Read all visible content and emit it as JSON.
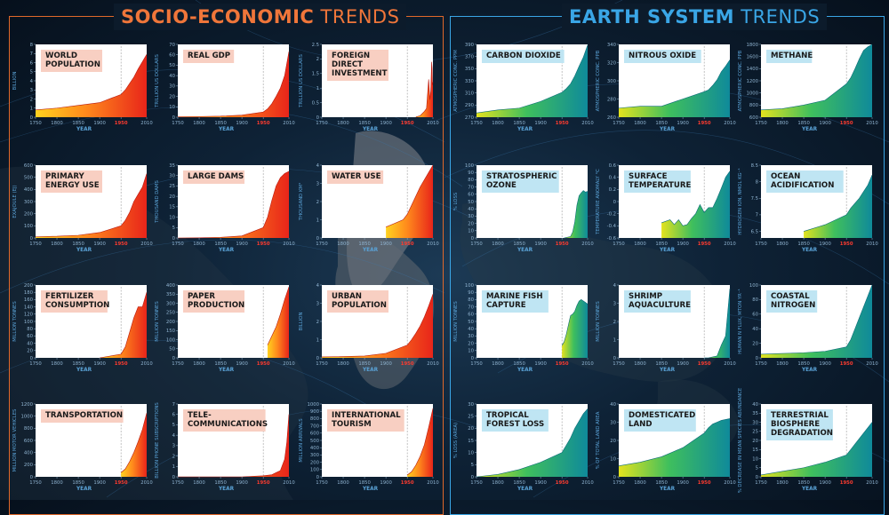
{
  "header": {
    "left": {
      "bold": "SOCIO-ECONOMIC",
      "light": "TRENDS",
      "color": "#f0763a"
    },
    "right": {
      "bold": "EARTH SYSTEM",
      "light": "TRENDS",
      "color": "#3aa6e6"
    }
  },
  "colors": {
    "socio_border": "#e0682a",
    "earth_border": "#3aa6e6",
    "marker_year": "#ff3b2f"
  },
  "xlabel": "YEAR",
  "x_ticks": [
    1750,
    1800,
    1850,
    1900,
    1950,
    2010
  ],
  "chart_data": [
    {
      "type": "area",
      "group": "socio",
      "title": [
        "WORLD",
        "POPULATION"
      ],
      "ylabel": "BILLION",
      "yticks": [
        0,
        1,
        2,
        3,
        4,
        5,
        6,
        7,
        8
      ],
      "ylim": [
        0,
        8
      ],
      "x": [
        1750,
        1800,
        1850,
        1900,
        1950,
        1960,
        1970,
        1980,
        1990,
        2000,
        2010
      ],
      "values": [
        0.8,
        1.0,
        1.3,
        1.6,
        2.5,
        3.0,
        3.7,
        4.4,
        5.3,
        6.1,
        6.9
      ]
    },
    {
      "type": "area",
      "group": "socio",
      "title": [
        "REAL GDP"
      ],
      "ylabel": "TRILLION US DOLLARS",
      "yticks": [
        0,
        10,
        20,
        30,
        40,
        50,
        60,
        70
      ],
      "ylim": [
        0,
        70
      ],
      "x": [
        1750,
        1800,
        1850,
        1900,
        1950,
        1960,
        1970,
        1980,
        1990,
        2000,
        2010
      ],
      "values": [
        0.4,
        0.6,
        1.0,
        2.0,
        5.0,
        8.0,
        13,
        20,
        28,
        40,
        63
      ]
    },
    {
      "type": "area",
      "group": "socio",
      "title": [
        "FOREIGN",
        "DIRECT",
        "INVESTMENT"
      ],
      "ylabel": "TRILLION US DOLLARS",
      "yticks": [
        0,
        0.5,
        1.0,
        1.5,
        2.0,
        2.5
      ],
      "ylim": [
        0,
        2.5
      ],
      "x": [
        1970,
        1980,
        1990,
        1995,
        2000,
        2003,
        2005,
        2007,
        2008,
        2009,
        2010
      ],
      "values": [
        0.01,
        0.05,
        0.2,
        0.3,
        1.3,
        0.6,
        0.9,
        1.9,
        1.7,
        1.1,
        1.2
      ]
    },
    {
      "type": "area",
      "group": "socio",
      "title": [
        "PRIMARY",
        "ENERGY USE"
      ],
      "ylabel": "EXAJOULE (EJ)",
      "yticks": [
        0,
        100,
        200,
        300,
        400,
        500,
        600
      ],
      "ylim": [
        0,
        600
      ],
      "x": [
        1750,
        1800,
        1850,
        1900,
        1950,
        1960,
        1970,
        1980,
        1990,
        2000,
        2010
      ],
      "values": [
        10,
        14,
        22,
        45,
        100,
        145,
        210,
        300,
        360,
        420,
        530
      ]
    },
    {
      "type": "area",
      "group": "socio",
      "title": [
        "LARGE DAMS"
      ],
      "ylabel": "THOUSAND DAMS",
      "yticks": [
        0,
        5,
        10,
        15,
        20,
        25,
        30,
        35
      ],
      "ylim": [
        0,
        35
      ],
      "x": [
        1750,
        1800,
        1850,
        1900,
        1950,
        1960,
        1970,
        1980,
        1990,
        2000,
        2010
      ],
      "values": [
        0,
        0.1,
        0.3,
        1.0,
        5.0,
        10,
        18,
        25,
        29,
        31,
        32
      ]
    },
    {
      "type": "area",
      "group": "socio",
      "title": [
        "WATER USE"
      ],
      "ylabel": "THOUSAND KM³",
      "yticks": [
        0,
        1,
        2,
        3,
        4
      ],
      "ylim": [
        0,
        4
      ],
      "x": [
        1900,
        1920,
        1940,
        1950,
        1960,
        1970,
        1980,
        1990,
        2000,
        2010
      ],
      "values": [
        0.6,
        0.8,
        1.0,
        1.3,
        1.8,
        2.3,
        2.8,
        3.2,
        3.6,
        4.0
      ]
    },
    {
      "type": "area",
      "group": "socio",
      "title": [
        "FERTILIZER",
        "CONSUMPTION"
      ],
      "ylabel": "MILLION TONNES",
      "yticks": [
        0,
        20,
        40,
        60,
        80,
        100,
        120,
        140,
        160,
        180,
        200
      ],
      "ylim": [
        0,
        200
      ],
      "x": [
        1900,
        1950,
        1960,
        1970,
        1980,
        1990,
        2000,
        2010
      ],
      "values": [
        0,
        10,
        30,
        70,
        110,
        140,
        140,
        180
      ]
    },
    {
      "type": "area",
      "group": "socio",
      "title": [
        "PAPER",
        "PRODUCTION"
      ],
      "ylabel": "MILLION TONNES",
      "yticks": [
        0,
        50,
        100,
        150,
        200,
        250,
        300,
        350,
        400
      ],
      "ylim": [
        0,
        400
      ],
      "x": [
        1960,
        1970,
        1980,
        1990,
        2000,
        2010
      ],
      "values": [
        70,
        120,
        170,
        240,
        320,
        390
      ]
    },
    {
      "type": "area",
      "group": "socio",
      "title": [
        "URBAN",
        "POPULATION"
      ],
      "ylabel": "BILLION",
      "yticks": [
        0,
        1,
        2,
        3,
        4
      ],
      "ylim": [
        0,
        4
      ],
      "x": [
        1750,
        1800,
        1850,
        1900,
        1950,
        1960,
        1970,
        1980,
        1990,
        2000,
        2010
      ],
      "values": [
        0.05,
        0.07,
        0.1,
        0.25,
        0.7,
        1.0,
        1.35,
        1.75,
        2.25,
        2.85,
        3.5
      ]
    },
    {
      "type": "area",
      "group": "socio",
      "title": [
        "TRANSPORTATION"
      ],
      "ylabel": "MILLION MOTOR VEHICLES",
      "yticks": [
        0,
        200,
        400,
        600,
        800,
        1000,
        1200
      ],
      "ylim": [
        0,
        1200
      ],
      "x": [
        1950,
        1960,
        1970,
        1980,
        1990,
        2000,
        2010
      ],
      "values": [
        70,
        130,
        250,
        400,
        580,
        780,
        1050
      ]
    },
    {
      "type": "area",
      "group": "socio",
      "title": [
        "TELE-",
        "COMMUNICATIONS"
      ],
      "ylabel": "BILLION PHONE SUBSCRIPTIONS",
      "yticks": [
        0,
        1,
        2,
        3,
        4,
        5,
        6,
        7
      ],
      "ylim": [
        0,
        7
      ],
      "x": [
        1750,
        1900,
        1950,
        1970,
        1980,
        1990,
        2000,
        2005,
        2010
      ],
      "values": [
        0,
        0,
        0.1,
        0.2,
        0.4,
        0.6,
        1.7,
        3.3,
        6.0
      ]
    },
    {
      "type": "area",
      "group": "socio",
      "title": [
        "INTERNATIONAL",
        "TOURISM"
      ],
      "ylabel": "MILLION ARRIVALS",
      "yticks": [
        0,
        100,
        200,
        300,
        400,
        500,
        600,
        700,
        800,
        900,
        1000
      ],
      "ylim": [
        0,
        1000
      ],
      "x": [
        1950,
        1960,
        1970,
        1980,
        1990,
        2000,
        2010
      ],
      "values": [
        25,
        70,
        160,
        280,
        440,
        680,
        940
      ]
    },
    {
      "type": "area",
      "group": "earth",
      "title": [
        "CARBON DIOXIDE"
      ],
      "ylabel": "ATMOSPHERIC CONC. PPM",
      "yticks": [
        270,
        290,
        310,
        330,
        350,
        370,
        390
      ],
      "ylim": [
        270,
        390
      ],
      "x": [
        1750,
        1800,
        1850,
        1900,
        1950,
        1960,
        1970,
        1980,
        1990,
        2000,
        2010
      ],
      "values": [
        277,
        282,
        285,
        296,
        311,
        317,
        325,
        338,
        354,
        369,
        389
      ]
    },
    {
      "type": "area",
      "group": "earth",
      "title": [
        "NITROUS OXIDE"
      ],
      "ylabel": "ATMOSPHERIC CONC. PPB",
      "yticks": [
        260,
        280,
        300,
        320,
        340
      ],
      "ylim": [
        260,
        340
      ],
      "x": [
        1750,
        1800,
        1850,
        1900,
        1950,
        1960,
        1970,
        1980,
        1990,
        2000,
        2010
      ],
      "values": [
        270,
        272,
        272,
        280,
        288,
        290,
        295,
        301,
        310,
        316,
        323
      ]
    },
    {
      "type": "area",
      "group": "earth",
      "title": [
        "METHANE"
      ],
      "ylabel": "ATMOSPHERIC CONC. PPB",
      "yticks": [
        600,
        800,
        1000,
        1200,
        1400,
        1600,
        1800
      ],
      "ylim": [
        600,
        1800
      ],
      "x": [
        1750,
        1800,
        1850,
        1900,
        1950,
        1960,
        1970,
        1980,
        1990,
        2000,
        2010
      ],
      "values": [
        720,
        740,
        800,
        880,
        1150,
        1250,
        1400,
        1560,
        1700,
        1760,
        1800
      ]
    },
    {
      "type": "area",
      "group": "earth",
      "title": [
        "STRATOSPHERIC",
        "OZONE"
      ],
      "ylabel": "% LOSS",
      "yticks": [
        0,
        10,
        20,
        30,
        40,
        50,
        60,
        70,
        80,
        90,
        100
      ],
      "ylim": [
        0,
        100
      ],
      "x": [
        1955,
        1970,
        1975,
        1980,
        1985,
        1990,
        1995,
        2000,
        2005,
        2010
      ],
      "values": [
        0,
        2,
        8,
        22,
        45,
        58,
        62,
        65,
        63,
        64
      ]
    },
    {
      "type": "area",
      "group": "earth",
      "title": [
        "SURFACE",
        "TEMPERATURE"
      ],
      "ylabel": "TEMPERATURE ANOMALY °C",
      "yticks": [
        -0.6,
        -0.4,
        -0.2,
        0,
        0.2,
        0.4,
        0.6
      ],
      "ylim": [
        -0.6,
        0.6
      ],
      "x": [
        1850,
        1870,
        1880,
        1890,
        1900,
        1910,
        1920,
        1930,
        1940,
        1950,
        1960,
        1970,
        1980,
        1990,
        2000,
        2010
      ],
      "values": [
        -0.35,
        -0.3,
        -0.38,
        -0.3,
        -0.4,
        -0.38,
        -0.28,
        -0.2,
        -0.05,
        -0.18,
        -0.1,
        -0.1,
        0.05,
        0.22,
        0.4,
        0.5
      ]
    },
    {
      "type": "area",
      "group": "earth",
      "title": [
        "OCEAN",
        "ACIDIFICATION"
      ],
      "ylabel": "HYDROGEN ION, NMOL KG⁻¹",
      "yticks": [
        6.5,
        7.0,
        7.5,
        8.0,
        8.5
      ],
      "ylim": [
        6.3,
        8.5
      ],
      "x": [
        1850,
        1900,
        1950,
        1960,
        1970,
        1980,
        1990,
        2000,
        2010
      ],
      "values": [
        6.5,
        6.7,
        7.0,
        7.2,
        7.35,
        7.5,
        7.7,
        7.9,
        8.2
      ]
    },
    {
      "type": "area",
      "group": "earth",
      "title": [
        "MARINE FISH",
        "CAPTURE"
      ],
      "ylabel": "MILLION TONNES",
      "yticks": [
        0,
        10,
        20,
        30,
        40,
        50,
        60,
        70,
        80,
        90,
        100
      ],
      "ylim": [
        0,
        100
      ],
      "x": [
        1950,
        1955,
        1960,
        1965,
        1970,
        1975,
        1980,
        1985,
        1990,
        1995,
        2000,
        2005,
        2010
      ],
      "values": [
        17,
        22,
        32,
        45,
        58,
        60,
        64,
        72,
        78,
        80,
        78,
        76,
        74
      ]
    },
    {
      "type": "area",
      "group": "earth",
      "title": [
        "SHRIMP",
        "AQUACULTURE"
      ],
      "ylabel": "MILLION TONNES",
      "yticks": [
        0,
        1,
        2,
        3,
        4
      ],
      "ylim": [
        0,
        4
      ],
      "x": [
        1950,
        1960,
        1970,
        1980,
        1990,
        2000,
        2005,
        2010
      ],
      "values": [
        0,
        0,
        0.05,
        0.1,
        0.7,
        1.2,
        2.5,
        3.8
      ]
    },
    {
      "type": "area",
      "group": "earth",
      "title": [
        "COASTAL",
        "NITROGEN"
      ],
      "ylabel": "HUMAN N FLUX, MTON YR⁻¹",
      "yticks": [
        0,
        20,
        40,
        60,
        80,
        100
      ],
      "ylim": [
        0,
        100
      ],
      "x": [
        1750,
        1800,
        1850,
        1900,
        1950,
        1960,
        1970,
        1980,
        1990,
        2000,
        2010
      ],
      "values": [
        5,
        6,
        7,
        9,
        15,
        25,
        40,
        55,
        70,
        85,
        100
      ]
    },
    {
      "type": "area",
      "group": "earth",
      "title": [
        "TROPICAL",
        "FOREST LOSS"
      ],
      "ylabel": "% LOSS (AREA)",
      "yticks": [
        0,
        5,
        10,
        15,
        20,
        25,
        30
      ],
      "ylim": [
        0,
        30
      ],
      "x": [
        1750,
        1800,
        1850,
        1900,
        1950,
        1960,
        1970,
        1980,
        1990,
        2000,
        2010
      ],
      "values": [
        0,
        1,
        3,
        6,
        10,
        13,
        16,
        20,
        23,
        26,
        28
      ]
    },
    {
      "type": "area",
      "group": "earth",
      "title": [
        "DOMESTICATED",
        "LAND"
      ],
      "ylabel": "% OF TOTAL LAND AREA",
      "yticks": [
        0,
        10,
        20,
        30,
        40
      ],
      "ylim": [
        0,
        40
      ],
      "x": [
        1750,
        1800,
        1850,
        1900,
        1950,
        1960,
        1970,
        1980,
        1990,
        2000,
        2010
      ],
      "values": [
        6,
        8,
        11,
        16,
        24,
        27,
        29,
        30,
        31,
        31.5,
        32
      ]
    },
    {
      "type": "area",
      "group": "earth",
      "title": [
        "TERRESTRIAL",
        "BIOSPHERE",
        "DEGRADATION"
      ],
      "ylabel": "% DECREASE IN MEAN SPECIES ABUNDANCE",
      "yticks": [
        0,
        5,
        10,
        15,
        20,
        25,
        30,
        35,
        40
      ],
      "ylim": [
        0,
        40
      ],
      "x": [
        1750,
        1800,
        1850,
        1900,
        1950,
        1960,
        1970,
        1980,
        1990,
        2000,
        2010
      ],
      "values": [
        1,
        3,
        5,
        8,
        12,
        15,
        18,
        21,
        24,
        27,
        30
      ]
    }
  ]
}
